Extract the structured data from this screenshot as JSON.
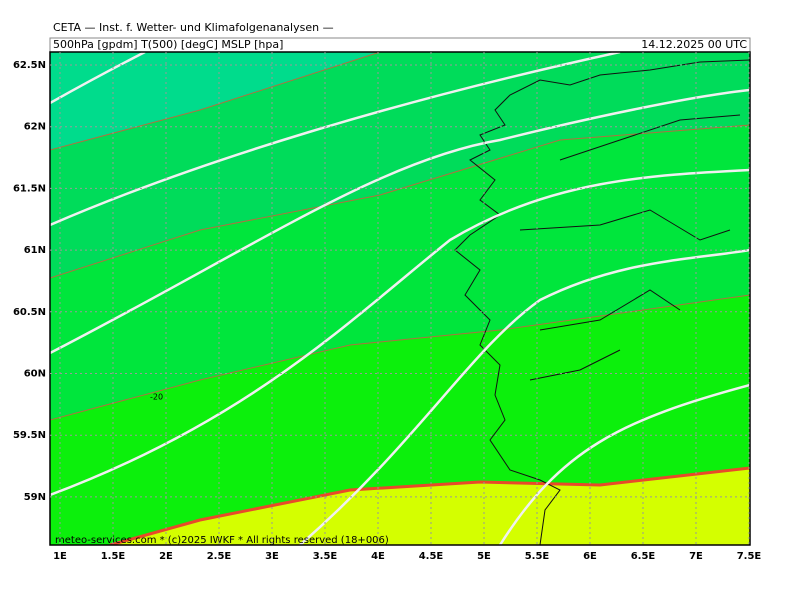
{
  "header": {
    "title": "CETA — Inst. f. Wetter- und Klimafolgenanalysen —",
    "subtitle": "500hPa [gpdm] T(500) [degC] MSLP [hpa]",
    "datetime": "14.12.2025 00 UTC"
  },
  "map": {
    "lon_ticks": [
      {
        "value": 1,
        "label": "1E"
      },
      {
        "value": 1.5,
        "label": "1.5E"
      },
      {
        "value": 2,
        "label": "2E"
      },
      {
        "value": 2.5,
        "label": "2.5E"
      },
      {
        "value": 3,
        "label": "3E"
      },
      {
        "value": 3.5,
        "label": "3.5E"
      },
      {
        "value": 4,
        "label": "4E"
      },
      {
        "value": 4.5,
        "label": "4.5E"
      },
      {
        "value": 5,
        "label": "5E"
      },
      {
        "value": 5.5,
        "label": "5.5E"
      },
      {
        "value": 6,
        "label": "6E"
      },
      {
        "value": 6.5,
        "label": "6.5E"
      },
      {
        "value": 7,
        "label": "7E"
      },
      {
        "value": 7.5,
        "label": "7.5E"
      }
    ],
    "lat_ticks": [
      {
        "value": 59,
        "label": "59N"
      },
      {
        "value": 59.5,
        "label": "59.5N"
      },
      {
        "value": 60,
        "label": "60N"
      },
      {
        "value": 60.5,
        "label": "60.5N"
      },
      {
        "value": 61,
        "label": "61N"
      },
      {
        "value": 61.5,
        "label": "61.5N"
      },
      {
        "value": 62,
        "label": "62N"
      },
      {
        "value": 62.5,
        "label": "62.5N"
      }
    ],
    "contour_label": "-20",
    "credit": "meteo-services.com * (c)2025 IWKF * All rights reserved (18+006)"
  }
}
